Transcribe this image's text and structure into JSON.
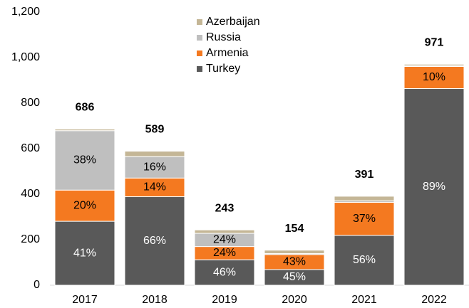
{
  "chart_data": {
    "type": "stacked_bar",
    "categories": [
      "2017",
      "2018",
      "2019",
      "2020",
      "2021",
      "2022"
    ],
    "series": [
      {
        "name": "Turkey",
        "color": "#595959",
        "values": [
          281,
          389,
          112,
          69,
          219,
          864
        ],
        "share_labels": [
          "41%",
          "66%",
          "46%",
          "45%",
          "56%",
          "89%"
        ]
      },
      {
        "name": "Armenia",
        "color": "#f47920",
        "values": [
          137,
          82,
          58,
          66,
          145,
          97
        ],
        "share_labels": [
          "20%",
          "14%",
          "24%",
          "43%",
          "37%",
          "10%"
        ]
      },
      {
        "name": "Russia",
        "color": "#bfbfbf",
        "values": [
          261,
          94,
          58,
          4,
          7,
          3
        ],
        "share_labels": [
          "38%",
          "16%",
          "24%",
          null,
          null,
          null
        ]
      },
      {
        "name": "Azerbaijan",
        "color": "#c4b696",
        "values": [
          7,
          24,
          15,
          15,
          20,
          7
        ]
      }
    ],
    "totals": [
      686,
      589,
      243,
      154,
      391,
      971
    ],
    "ylim": [
      0,
      1200
    ],
    "yticks": [
      0,
      200,
      400,
      600,
      800,
      {
        "value": 1000,
        "label": "1,000"
      },
      {
        "value": 1200,
        "label": "1,200"
      }
    ],
    "legend": "top"
  }
}
